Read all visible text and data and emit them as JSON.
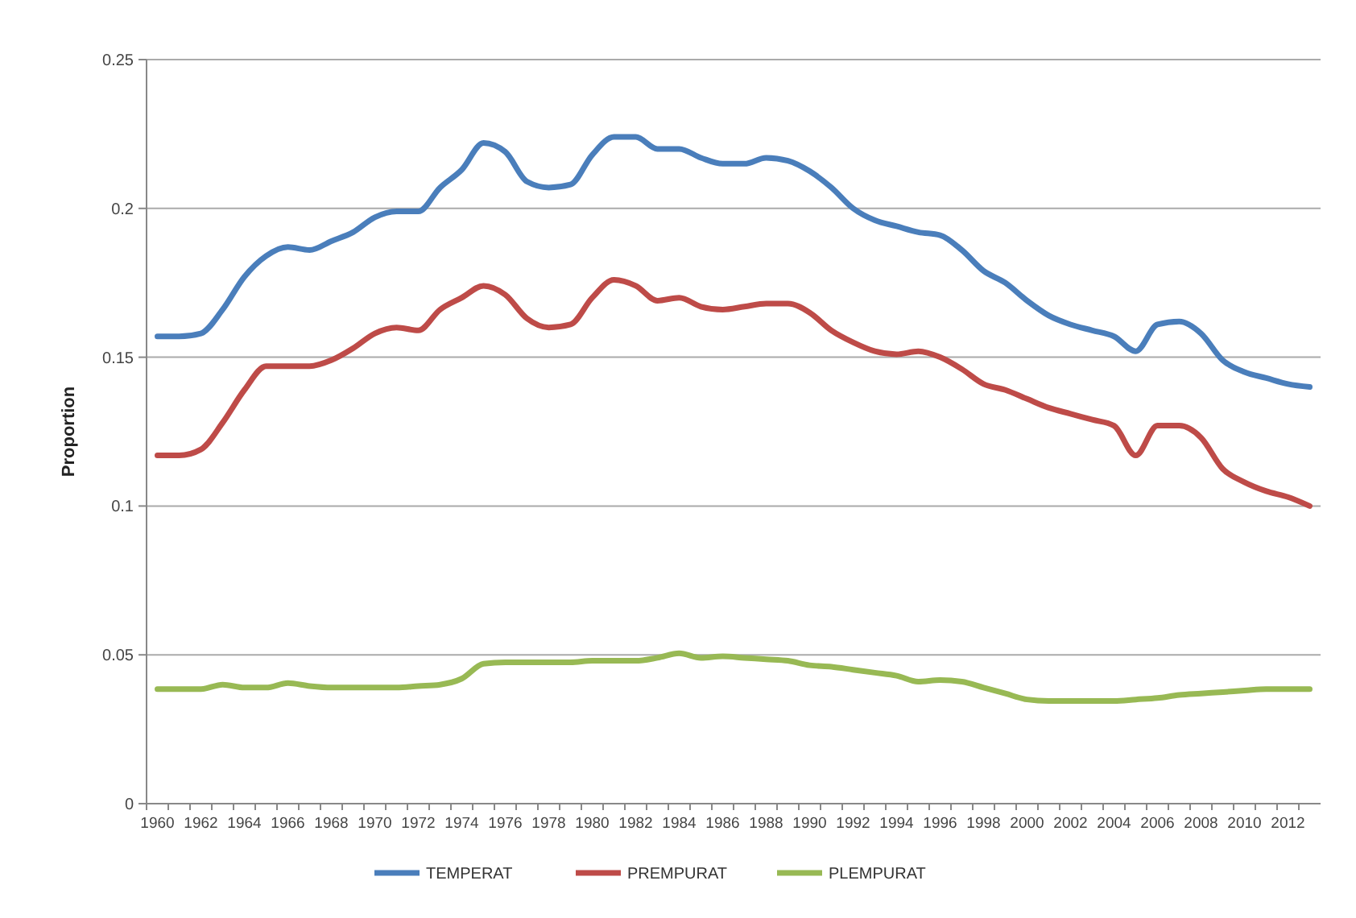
{
  "chart_data": {
    "type": "line",
    "ylabel": "Proportion",
    "categories": [
      "1960",
      null,
      "1962",
      null,
      "1964",
      null,
      "1966",
      null,
      "1968",
      null,
      "1970",
      null,
      "1972",
      null,
      "1974",
      null,
      "1976",
      null,
      "1978",
      null,
      "1980",
      null,
      "1982",
      null,
      "1984",
      null,
      "1986",
      null,
      "1988",
      null,
      "1990",
      null,
      "1992",
      null,
      "1994",
      null,
      "1996",
      null,
      "1998",
      null,
      "2000",
      null,
      "2002",
      null,
      "2004",
      null,
      "2006",
      null,
      "2008",
      null,
      "2010",
      null,
      "2012",
      null
    ],
    "series": [
      {
        "name": "TEMPERAT",
        "color": "#4a7ebb",
        "values": [
          0.157,
          0.157,
          0.158,
          0.166,
          0.177,
          0.184,
          0.187,
          0.186,
          0.189,
          0.192,
          0.197,
          0.199,
          0.199,
          0.207,
          0.213,
          0.222,
          0.219,
          0.209,
          0.207,
          0.208,
          0.218,
          0.224,
          0.224,
          0.22,
          0.22,
          0.217,
          0.215,
          0.215,
          0.217,
          0.216,
          0.2125,
          0.207,
          0.2,
          0.196,
          0.194,
          0.192,
          0.191,
          0.186,
          0.179,
          0.175,
          0.169,
          0.164,
          0.161,
          0.159,
          0.157,
          0.152,
          0.161,
          0.162,
          0.158,
          0.149,
          0.145,
          0.143,
          0.141,
          0.14
        ]
      },
      {
        "name": "PREMPURAT",
        "color": "#be4b48",
        "values": [
          0.117,
          0.117,
          0.119,
          0.128,
          0.139,
          0.147,
          0.147,
          0.147,
          0.149,
          0.153,
          0.158,
          0.16,
          0.159,
          0.166,
          0.17,
          0.174,
          0.171,
          0.163,
          0.16,
          0.161,
          0.17,
          0.176,
          0.174,
          0.169,
          0.17,
          0.167,
          0.166,
          0.167,
          0.168,
          0.168,
          0.165,
          0.159,
          0.155,
          0.152,
          0.151,
          0.152,
          0.15,
          0.146,
          0.141,
          0.139,
          0.136,
          0.133,
          0.131,
          0.129,
          0.127,
          0.117,
          0.127,
          0.127,
          0.123,
          0.1125,
          0.108,
          0.105,
          0.103,
          0.1
        ]
      },
      {
        "name": "PLEMPURAT",
        "color": "#98b954",
        "values": [
          0.0385,
          0.0385,
          0.0385,
          0.04,
          0.039,
          0.039,
          0.0405,
          0.0395,
          0.039,
          0.039,
          0.039,
          0.039,
          0.0395,
          0.04,
          0.042,
          0.047,
          0.0475,
          0.0475,
          0.0475,
          0.0475,
          0.048,
          0.048,
          0.048,
          0.049,
          0.0505,
          0.049,
          0.0495,
          0.049,
          0.0485,
          0.048,
          0.0465,
          0.046,
          0.045,
          0.044,
          0.043,
          0.041,
          0.0415,
          0.041,
          0.039,
          0.037,
          0.035,
          0.0345,
          0.0345,
          0.0345,
          0.0345,
          0.035,
          0.0355,
          0.0365,
          0.037,
          0.0375,
          0.038,
          0.0385,
          0.0385,
          0.0385
        ]
      }
    ],
    "ylim": [
      0,
      0.25
    ],
    "yticks": [
      0,
      0.05,
      0.1,
      0.15,
      0.2,
      0.25
    ],
    "grid": "y",
    "legend": "bottom",
    "marker": "none",
    "line_style": "solid"
  }
}
